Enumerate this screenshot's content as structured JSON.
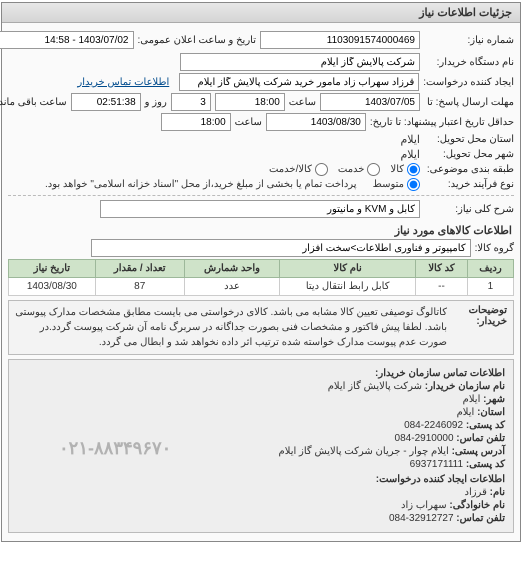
{
  "panel_title": "جزئیات اطلاعات نیاز",
  "top": {
    "number_label": "شماره نیاز:",
    "number_value": "1103091574000469",
    "public_dt_label": "تاریخ و ساعت اعلان عمومی:",
    "public_dt_value": "1403/07/02 - 14:58",
    "buyer_org_label": "نام دستگاه خریدار:",
    "buyer_org_value": "شرکت پالایش گاز ایلام",
    "creator_label": "ایجاد کننده درخواست:",
    "creator_value": "قرزاد سهراب زاد مامور خرید شرکت پالایش گاز ایلام",
    "contact_link": "اطلاعات تماس خریدار",
    "reply_deadline_label": "مهلت ارسال پاسخ: تا",
    "reply_date": "1403/07/05",
    "reply_time_lbl": "ساعت",
    "reply_time": "18:00",
    "reply_days": "3",
    "reply_days_lbl": "روز و",
    "reply_remain": "02:51:38",
    "reply_remain_lbl": "ساعت باقی مانده",
    "validity_label": "حداقل تاریخ اعتبار پیشنهاد: تا تاریخ:",
    "validity_date": "1403/08/30",
    "validity_time_lbl": "ساعت",
    "validity_time": "18:00",
    "deliver_state_lbl": "استان محل تحویل:",
    "deliver_state": "ایلام",
    "deliver_city_lbl": "شهر محل تحویل:",
    "deliver_city": "ایلام",
    "subject_cat_lbl": "طبقه بندی موضوعی:",
    "radio_goods": "کالا",
    "radio_service": "خدمت",
    "radio_both": "کالا/خدمت",
    "purchase_type_lbl": "نوع فرآیند خرید:",
    "purchase_radio_medium": "متوسط",
    "purchase_note": "پرداخت تمام یا بخشی از مبلغ خرید،از محل \"اسناد خزانه اسلامی\" خواهد بود."
  },
  "need_summary_lbl": "شرح کلی نیاز:",
  "need_summary": "کابل و KVM و مانیتور",
  "items_section_title": "اطلاعات کالاهای مورد نیاز",
  "group_lbl": "گروه کالا:",
  "group_value": "کامپیوتر و فناوری اطلاعات>سخت افزار",
  "table": {
    "cols": [
      "ردیف",
      "کد کالا",
      "نام کالا",
      "واحد شمارش",
      "تعداد / مقدار",
      "تاریخ نیاز"
    ],
    "rows": [
      [
        "1",
        "--",
        "کابل رابط انتقال دیتا",
        "عدد",
        "87",
        "1403/08/30"
      ]
    ]
  },
  "buyer_desc_lbl": "توضیحات خریدار:",
  "buyer_desc": "کاتالوگ توصیفی تعیین کالا مشابه می باشد. کالای درخواستی می بایست مطابق مشخصات مدارک پیوستی باشد. لطفا پیش فاکتور و مشخصات فنی بصورت جداگانه در سربرگ نامه آن شرکت پیوست گردد.در صورت عدم پیوست مدارک خواسته شده ترتیب اثر داده نخواهد شد و ابطال می گردد.",
  "contact_section_title": "اطلاعات تماس سازمان خریدار:",
  "contact": {
    "org_lbl": "نام سازمان خریدار:",
    "org": "شرکت پالایش گاز ایلام",
    "city_lbl": "شهر:",
    "city": "ایلام",
    "state_lbl": "استان:",
    "state": "ایلام",
    "postal_lbl": "کد پستی:",
    "postal": "2246092-084",
    "phone_lbl": "تلفن تماس:",
    "phone": "2910000-084",
    "addr_lbl": "آدرس پستی:",
    "addr": "ایلام چوار - جریان شرکت پالایش گاز ایلام",
    "pbox_lbl": "کد پستی:",
    "pbox": "6937171111",
    "req_creator_title": "اطلاعات ایجاد کننده درخواست:",
    "fname_lbl": "نام:",
    "fname": "قرزاد",
    "lname_lbl": "نام خانوادگی:",
    "lname": "سهراب زاد",
    "cphone_lbl": "تلفن تماس:",
    "cphone": "32912727-084"
  },
  "watermark": "۰۲۱-۸۸۳۴۹۶۷۰",
  "colors": {
    "header_bg": "#e0e0e0",
    "th_bg": "#cfe3c9",
    "link": "#004b8d"
  }
}
